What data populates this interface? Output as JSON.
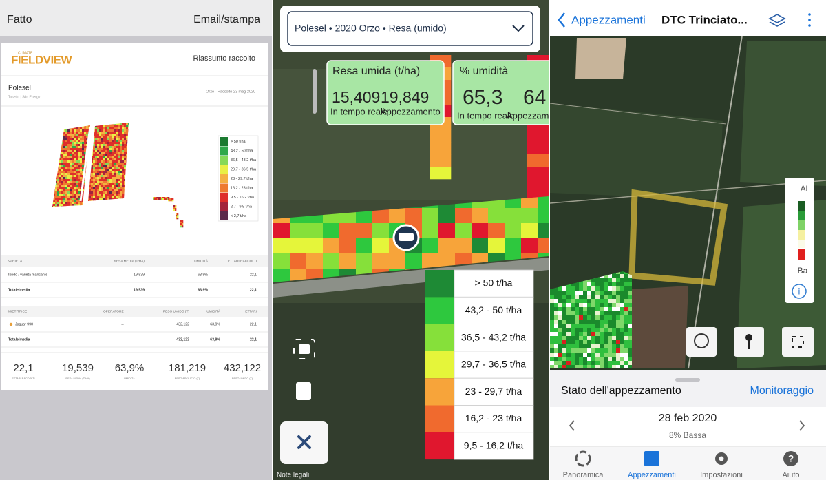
{
  "report_screen": {
    "header": {
      "done": "Fatto",
      "email_print": "Email/stampa"
    },
    "brand_small": "CLIMATE",
    "brand": "FIELDVIEW",
    "title": "Riassunto raccolto",
    "field": "Polesel",
    "farm": "Tosetto | Sdn Energy",
    "crop_harvest": "Orzo - Raccolto 23 mag 2020",
    "legend": [
      {
        "label": "> 50 t/ha",
        "color": "#1b7a30"
      },
      {
        "label": "43,2 - 50 t/ha",
        "color": "#2fa84a"
      },
      {
        "label": "36,5 - 43,2 t/ha",
        "color": "#86d957"
      },
      {
        "label": "29,7 - 36,5 t/ha",
        "color": "#e9ef45"
      },
      {
        "label": "23 - 29,7 t/ha",
        "color": "#f4b043"
      },
      {
        "label": "16,2 - 23 t/ha",
        "color": "#ee7a31"
      },
      {
        "label": "9,5 - 16,2 t/ha",
        "color": "#de2f2b"
      },
      {
        "label": "2,7 - 9,5 t/ha",
        "color": "#a3243c"
      },
      {
        "label": "< 2,7 t/ha",
        "color": "#5b2a4b"
      }
    ],
    "varieties": {
      "headers": [
        "VARIETÀ",
        "RESA MEDIA (T/HA)",
        "UMIDITÀ",
        "ETTARI RACCOLTI"
      ],
      "rows": [
        [
          "Ibrido / varietà mancante",
          "19,539",
          "63,9%",
          "22,1"
        ],
        [
          "Totale/media",
          "19,539",
          "63,9%",
          "22,1"
        ]
      ]
    },
    "harvesters": {
      "headers": [
        "MIETITRICE",
        "OPERATORE",
        "PESO UMIDO (T)",
        "UMIDITÀ",
        "ETTARI"
      ],
      "rows": [
        {
          "harvester": "Jaguar 990",
          "operator": "--",
          "wet_weight": "432,122",
          "moisture": "63,9%",
          "hectares": "22,1"
        },
        {
          "harvester": "Totale/media",
          "wet_weight": "432,122",
          "moisture": "63,9%",
          "hectares": "22,1"
        }
      ]
    },
    "summary": [
      {
        "value": "22,1",
        "label": "ETTARI RACCOLTI"
      },
      {
        "value": "19,539",
        "label": "RESA MEDIA (T/HA)"
      },
      {
        "value": "63,9%",
        "label": "UMIDITÀ"
      },
      {
        "value": "181,219",
        "label": "PESO ASCIUTTO (T)"
      },
      {
        "value": "432,122",
        "label": "PESO UMIDO (T)"
      }
    ]
  },
  "map_screen": {
    "selector": "Polesel • 2020 Orzo • Resa (umido)",
    "cards": [
      {
        "title": "Resa umida (t/ha)",
        "live_value": "15,409",
        "live_label": "In tempo reale",
        "field_value": "19,849",
        "field_label": "Appezzamento"
      },
      {
        "title": "% umidità",
        "live_value": "65,3",
        "live_label": "In tempo reale",
        "field_value": "64",
        "field_label": "Appezzamento"
      }
    ],
    "legend": [
      {
        "label": "> 50 t/ha",
        "color": "#1e8a35"
      },
      {
        "label": "43,2 - 50 t/ha",
        "color": "#2ec83e"
      },
      {
        "label": "36,5 - 43,2 t/ha",
        "color": "#86e03a"
      },
      {
        "label": "29,7 - 36,5 t/ha",
        "color": "#e5f53a"
      },
      {
        "label": "23 - 29,7 t/ha",
        "color": "#f7a43a"
      },
      {
        "label": "16,2 - 23 t/ha",
        "color": "#f06a2e"
      },
      {
        "label": "9,5 - 16,2 t/ha",
        "color": "#e0172e"
      }
    ],
    "legal": "Note legali"
  },
  "field_screen": {
    "back": "Appezzamenti",
    "field_name": "DTC Trinciato...",
    "scale_high": "Al",
    "scale_low": "Ba",
    "sheet_title": "Stato dell'appezzamento",
    "sheet_action": "Monitoraggio",
    "date": "28 feb 2020",
    "status": "8% Bassa",
    "tabs": [
      "Panoramica",
      "Appezzamenti",
      "Impostazioni",
      "Aiuto"
    ]
  }
}
